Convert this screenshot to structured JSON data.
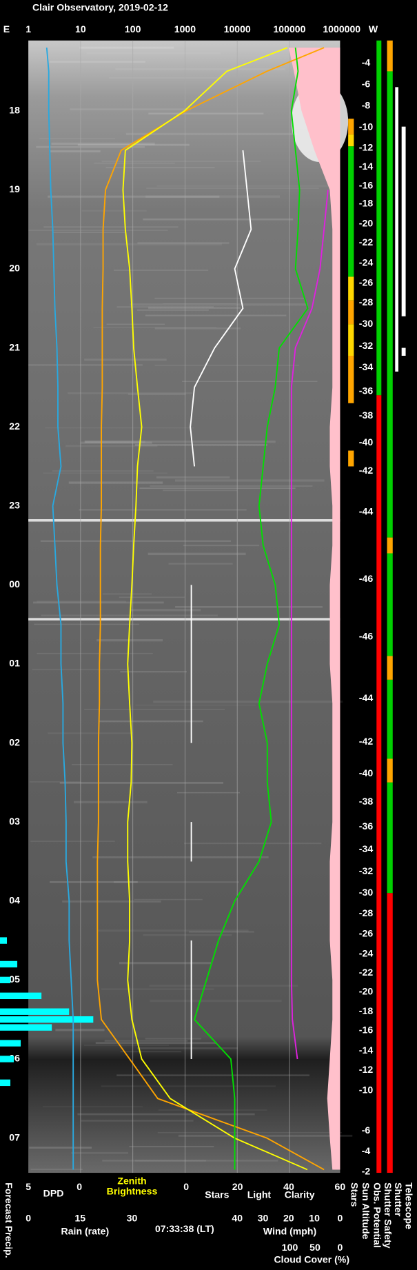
{
  "chart_data": {
    "type": "line",
    "title": "Clair Observatory, 2019-02-12",
    "timestamp": "07:33:38 (LT)",
    "east_label": "E",
    "west_label": "W",
    "tlim": [
      17.11,
      31.44
    ],
    "time_ticks": [
      18,
      19,
      20,
      21,
      22,
      23,
      {
        "value": 24,
        "label": "00"
      },
      {
        "value": 25,
        "label": "01"
      },
      {
        "value": 26,
        "label": "02"
      },
      {
        "value": 27,
        "label": "03"
      },
      {
        "value": 28,
        "label": "04"
      },
      {
        "value": 29,
        "label": "05"
      },
      {
        "value": 30,
        "label": "06"
      },
      {
        "value": 31,
        "label": "07"
      }
    ],
    "axes": {
      "top": {
        "scale": "log",
        "lim": [
          1,
          1000000
        ],
        "ticks": [
          1,
          10,
          100,
          1000,
          10000,
          100000,
          1000000
        ],
        "grid": true
      },
      "dpd": {
        "lim": [
          5,
          0
        ],
        "ticks": [
          5,
          0
        ]
      },
      "rain": {
        "lim": [
          0,
          30
        ],
        "ticks": [
          0,
          15,
          30
        ],
        "label": "Rain (rate)"
      },
      "slc": {
        "lim": [
          0,
          60
        ],
        "ticks": [
          0,
          20,
          40,
          60
        ]
      },
      "wind": {
        "lim": [
          40,
          0
        ],
        "ticks": [
          40,
          30,
          20,
          10,
          0
        ]
      },
      "cloud": {
        "lim": [
          100,
          0
        ],
        "ticks": [
          100,
          50,
          0
        ]
      }
    },
    "x": [
      17.2,
      17.5,
      18,
      18.5,
      19,
      19.5,
      20,
      20.5,
      21,
      21.5,
      22,
      22.5,
      23,
      23.5,
      24,
      24.5,
      25,
      25.5,
      26,
      26.5,
      27,
      27.5,
      28,
      28.5,
      29,
      29.5,
      30,
      30.5,
      31,
      31.4
    ],
    "series": [
      {
        "name": "DPD",
        "color": "#29a9e0",
        "axis": "dpd",
        "values": [
          3.2,
          3.0,
          3.0,
          2.9,
          2.8,
          2.6,
          2.5,
          2.4,
          2.2,
          2.1,
          2.1,
          1.8,
          2.6,
          2.4,
          2.2,
          1.8,
          1.8,
          1.6,
          1.6,
          1.4,
          1.3,
          1.3,
          1.0,
          1.0,
          0.8,
          0.6,
          0.6,
          0.6,
          0.6,
          0.6
        ]
      },
      {
        "name": "Zenith Brightness",
        "color": "#ffff00",
        "axis": "top",
        "values": [
          91000,
          6300,
          980,
          72,
          65,
          72,
          87,
          96,
          104,
          123,
          148,
          123,
          115,
          104,
          96,
          87,
          80,
          87,
          96,
          93,
          80,
          80,
          87,
          87,
          80,
          96,
          148,
          520,
          8900,
          220000
        ]
      },
      {
        "name": "Light",
        "color": "#ffa500",
        "axis": "top",
        "values": [
          460000,
          37000,
          1050,
          60,
          30,
          27,
          27,
          26,
          26,
          26,
          25,
          25,
          25,
          24,
          24,
          24,
          23,
          23,
          22,
          22,
          22,
          21,
          21,
          21,
          21,
          25,
          87,
          300,
          37000,
          460000
        ]
      },
      {
        "name": "Clarity",
        "color": "#00e000",
        "axis": "slc",
        "values": [
          42.6,
          43.6,
          41.0,
          42.6,
          44.2,
          43.6,
          42.6,
          47.4,
          36.3,
          34.7,
          31.6,
          30.0,
          28.4,
          30.0,
          34.7,
          36.3,
          31.6,
          28.4,
          31.6,
          31.6,
          33.2,
          28.4,
          18.9,
          12.6,
          7.9,
          3.2,
          17.4,
          18.9,
          18.9,
          18.9
        ]
      },
      {
        "name": "Stars",
        "color": "#ffffff",
        "axis": "slc",
        "values": [
          null,
          null,
          null,
          22.1,
          23.7,
          25.3,
          18.9,
          22.1,
          11.1,
          3.2,
          1.6,
          3.2,
          null,
          null,
          2,
          2,
          2,
          2,
          2,
          null,
          2,
          2,
          null,
          2,
          2,
          2,
          2,
          null,
          null,
          null
        ]
      },
      {
        "name": "Cloud Cover (%)",
        "color": "#e020e0",
        "axis": "cloud",
        "values": [
          null,
          null,
          null,
          null,
          24,
          32,
          40,
          56,
          89,
          97,
          97,
          97,
          97,
          97,
          97,
          97,
          97,
          97,
          97,
          97,
          97,
          97,
          97,
          97,
          97,
          95,
          85,
          null,
          null,
          null
        ]
      },
      {
        "name": "Wind (mph)",
        "color": "#ffc0cb",
        "axis": "wind",
        "fill": true,
        "values": [
          20,
          18,
          15,
          10,
          4,
          3,
          3,
          3,
          3,
          3,
          4,
          4,
          3,
          3,
          4,
          4,
          4,
          3,
          3,
          3,
          3,
          4,
          4,
          4,
          3,
          3,
          4,
          5,
          4,
          3
        ]
      }
    ],
    "precip": {
      "name": "Forecast Precip.",
      "color": "#00ffff",
      "axis": "rain",
      "x": [
        28.5,
        28.8,
        29.0,
        29.2,
        29.4,
        29.5,
        29.6,
        29.8,
        30.0,
        30.3
      ],
      "values": [
        2,
        5,
        3,
        12,
        20,
        27,
        15,
        6,
        4,
        3
      ]
    },
    "sun_altitude": {
      "name": "Sun Altitude",
      "points": [
        {
          "time": 17.4,
          "value": -4
        },
        {
          "time": 17.67,
          "value": -6
        },
        {
          "time": 17.94,
          "value": -8
        },
        {
          "time": 18.21,
          "value": -10
        },
        {
          "time": 18.47,
          "value": -12
        },
        {
          "time": 18.71,
          "value": -14
        },
        {
          "time": 18.95,
          "value": -16
        },
        {
          "time": 19.18,
          "value": -18
        },
        {
          "time": 19.43,
          "value": -20
        },
        {
          "time": 19.67,
          "value": -22
        },
        {
          "time": 19.93,
          "value": -24
        },
        {
          "time": 20.18,
          "value": -26
        },
        {
          "time": 20.43,
          "value": -28
        },
        {
          "time": 20.7,
          "value": -30
        },
        {
          "time": 20.98,
          "value": -32
        },
        {
          "time": 21.25,
          "value": -34
        },
        {
          "time": 21.55,
          "value": -36
        },
        {
          "time": 21.86,
          "value": -38
        },
        {
          "time": 22.2,
          "value": -40
        },
        {
          "time": 22.56,
          "value": -42
        },
        {
          "time": 23.08,
          "value": -44
        },
        {
          "time": 23.93,
          "value": -46
        },
        {
          "time": 24.66,
          "value": -46
        },
        {
          "time": 25.44,
          "value": -44
        },
        {
          "time": 25.99,
          "value": -42
        },
        {
          "time": 26.39,
          "value": -40
        },
        {
          "time": 26.75,
          "value": -38
        },
        {
          "time": 27.06,
          "value": -36
        },
        {
          "time": 27.35,
          "value": -34
        },
        {
          "time": 27.63,
          "value": -32
        },
        {
          "time": 27.9,
          "value": -30
        },
        {
          "time": 28.16,
          "value": -28
        },
        {
          "time": 28.42,
          "value": -26
        },
        {
          "time": 28.67,
          "value": -24
        },
        {
          "time": 28.91,
          "value": -22
        },
        {
          "time": 29.15,
          "value": -20
        },
        {
          "time": 29.4,
          "value": -18
        },
        {
          "time": 29.64,
          "value": -16
        },
        {
          "time": 29.9,
          "value": -14
        },
        {
          "time": 30.14,
          "value": -12
        },
        {
          "time": 30.4,
          "value": -10
        },
        {
          "time": 30.91,
          "value": -6
        },
        {
          "time": 31.17,
          "value": -4
        },
        {
          "time": 31.43,
          "value": -2
        }
      ]
    },
    "status_columns": [
      {
        "name": "Stars",
        "segments": [
          {
            "from": 18.1,
            "to": 18.3,
            "color": "#ffa500"
          },
          {
            "from": 18.3,
            "to": 18.45,
            "color": "#ffd700"
          },
          {
            "from": 18.45,
            "to": 20.1,
            "color": "#00d000"
          },
          {
            "from": 20.1,
            "to": 20.4,
            "color": "#ffd700"
          },
          {
            "from": 20.4,
            "to": 20.7,
            "color": "#ffa500"
          },
          {
            "from": 20.7,
            "to": 21.1,
            "color": "#ffd700"
          },
          {
            "from": 21.1,
            "to": 21.7,
            "color": "#ffa500"
          },
          {
            "from": 22.3,
            "to": 22.5,
            "color": "#ffa500"
          }
        ]
      },
      {
        "name": "Obs. Potential",
        "segments": [
          {
            "from": 17.11,
            "to": 21.6,
            "color": "#00d000"
          },
          {
            "from": 21.6,
            "to": 31.44,
            "color": "#ff0000"
          }
        ]
      },
      {
        "name": "Shutter Safety",
        "segments": [
          {
            "from": 17.11,
            "to": 17.5,
            "color": "#ffa500"
          },
          {
            "from": 17.5,
            "to": 23.4,
            "color": "#00d000"
          },
          {
            "from": 23.4,
            "to": 23.6,
            "color": "#ffa500"
          },
          {
            "from": 23.6,
            "to": 24.9,
            "color": "#00d000"
          },
          {
            "from": 24.9,
            "to": 25.2,
            "color": "#ffa500"
          },
          {
            "from": 25.2,
            "to": 26.2,
            "color": "#00d000"
          },
          {
            "from": 26.2,
            "to": 26.5,
            "color": "#ffa500"
          },
          {
            "from": 26.5,
            "to": 27.9,
            "color": "#00d000"
          },
          {
            "from": 27.9,
            "to": 31.44,
            "color": "#ff0000"
          }
        ]
      },
      {
        "name": "Shutter",
        "segments": [
          {
            "from": 17.7,
            "to": 21.3,
            "color": "#ffffff"
          }
        ]
      },
      {
        "name": "Telescope",
        "segments": [
          {
            "from": 18.2,
            "to": 20.6,
            "color": "#ffffff"
          },
          {
            "from": 21.0,
            "to": 21.1,
            "color": "#ffffff"
          }
        ]
      }
    ]
  }
}
